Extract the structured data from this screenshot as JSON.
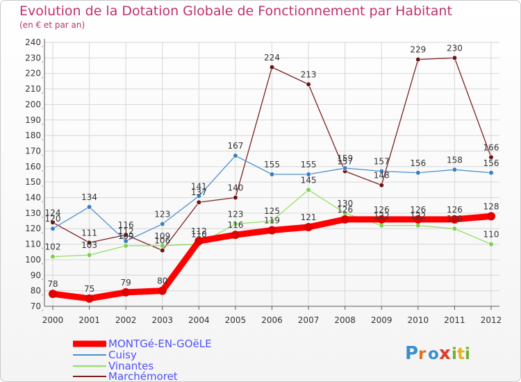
{
  "chart_data": {
    "type": "line",
    "title": "Evolution de la Dotation Globale de Fonctionnement par Habitant",
    "subtitle": "(en € et par an)",
    "xlabel": "",
    "ylabel": "",
    "ylim": [
      70,
      240
    ],
    "ystep": 10,
    "categories": [
      "2000",
      "2001",
      "2002",
      "2003",
      "2004",
      "2005",
      "2006",
      "2007",
      "2008",
      "2009",
      "2010",
      "2011",
      "2012"
    ],
    "series": [
      {
        "name": "MONTGé-EN-GOëLE",
        "color": "#ff0000",
        "marker": "#e00000",
        "legend_color": "#5050ff",
        "values": [
          78,
          75,
          79,
          80,
          112,
          116,
          119,
          121,
          126,
          126,
          126,
          126,
          128
        ]
      },
      {
        "name": "Cuisy",
        "color": "#4a8fcf",
        "marker": "#3a7fc0",
        "legend_color": "#5050ff",
        "values": [
          120,
          134,
          112,
          123,
          141,
          167,
          155,
          155,
          159,
          157,
          156,
          158,
          156
        ]
      },
      {
        "name": "Vinantes",
        "color": "#8fe060",
        "marker": "#7bd04c",
        "legend_color": "#5050ff",
        "values": [
          102,
          103,
          109,
          109,
          110,
          123,
          125,
          145,
          130,
          122,
          122,
          120,
          110
        ]
      },
      {
        "name": "Marchémoret",
        "color": "#7a2020",
        "marker": "#6a1414",
        "legend_color": "#5050ff",
        "values": [
          124,
          111,
          116,
          106,
          137,
          140,
          224,
          213,
          157,
          148,
          229,
          230,
          166
        ]
      }
    ]
  },
  "brand": {
    "letters": [
      "P",
      "r",
      "o",
      "x",
      "i",
      "t",
      "i"
    ]
  }
}
